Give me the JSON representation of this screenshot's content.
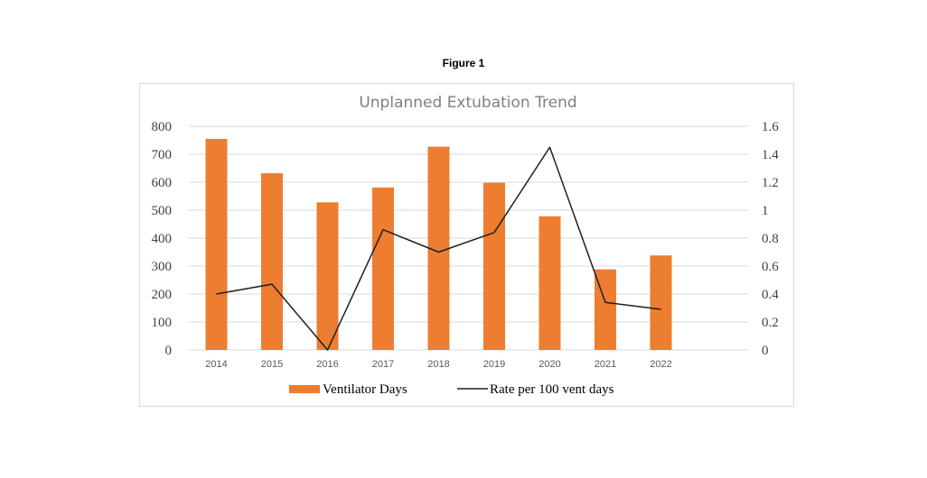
{
  "figure_label": "Figure 1",
  "colors": {
    "bar": "#ed7d31",
    "line": "#1f1f1f",
    "grid": "#d9d9d9"
  },
  "chart_data": {
    "type": "bar",
    "title": "Unplanned Extubation Trend",
    "categories": [
      "2014",
      "2015",
      "2016",
      "2017",
      "2018",
      "2019",
      "2020",
      "2021",
      "2022"
    ],
    "series": [
      {
        "name": "Ventilator Days",
        "type": "bar",
        "axis": "left",
        "values": [
          755,
          632,
          528,
          581,
          727,
          598,
          478,
          288,
          338
        ]
      },
      {
        "name": "Rate per 100 vent days",
        "type": "line",
        "axis": "right",
        "values": [
          0.4,
          0.47,
          0.0,
          0.86,
          0.7,
          0.84,
          1.45,
          0.34,
          0.29
        ]
      }
    ],
    "ylim_left": [
      0,
      800
    ],
    "yticks_left": [
      "0",
      "100",
      "200",
      "300",
      "400",
      "500",
      "600",
      "700",
      "800"
    ],
    "ylim_right": [
      0,
      1.6
    ],
    "yticks_right": [
      "0",
      "0.2",
      "0.4",
      "0.6",
      "0.8",
      "1",
      "1.2",
      "1.4",
      "1.6"
    ],
    "grid": true,
    "legend_position": "bottom"
  }
}
